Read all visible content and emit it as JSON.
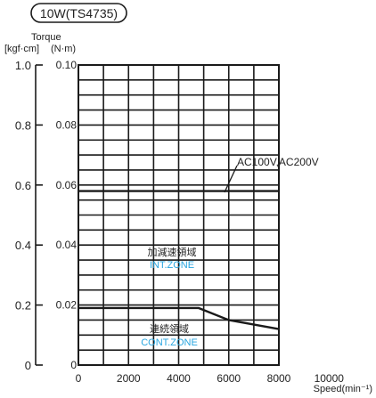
{
  "model_badge": "10W(TS4735)",
  "chart_data": {
    "type": "line",
    "ylabel": "Torque",
    "ylabel_units_left": "[kgf·cm]",
    "ylabel_units_right": "(N·m)",
    "xlabel": "Speed(min⁻¹)",
    "xlim": [
      0,
      10000
    ],
    "ylim": [
      0,
      0.1
    ],
    "ylim_secondary": [
      0,
      1.0
    ],
    "x_ticks": [
      "0",
      "2000",
      "4000",
      "6000",
      "8000",
      "10000"
    ],
    "x_tick_values": [
      0,
      2000,
      4000,
      6000,
      8000,
      10000
    ],
    "y_ticks_right": [
      "0",
      "0.02",
      "0.04",
      "0.06",
      "0.08",
      "0.10"
    ],
    "y_tick_values": [
      0,
      0.02,
      0.04,
      0.06,
      0.08,
      0.1
    ],
    "y_ticks_left": [
      "0",
      "0.2",
      "0.4",
      "0.6",
      "0.8",
      "1.0"
    ],
    "grid": true,
    "series": [
      {
        "name": "INT.ZONE",
        "x": [
          0,
          8000
        ],
        "y": [
          0.058,
          0.058
        ]
      },
      {
        "name": "CONT.ZONE",
        "x": [
          0,
          4800,
          6000,
          8000
        ],
        "y": [
          0.019,
          0.019,
          0.015,
          0.012
        ]
      }
    ],
    "annotations": {
      "voltage_label": "AC100V,AC200V",
      "int_zone_jp": "加減速領域",
      "int_zone_en": "INT.ZONE",
      "cont_zone_jp": "連続領域",
      "cont_zone_en": "CONT.ZONE"
    },
    "colors": {
      "zone_text": "#29a6e0",
      "line": "#1a1a1a"
    }
  }
}
